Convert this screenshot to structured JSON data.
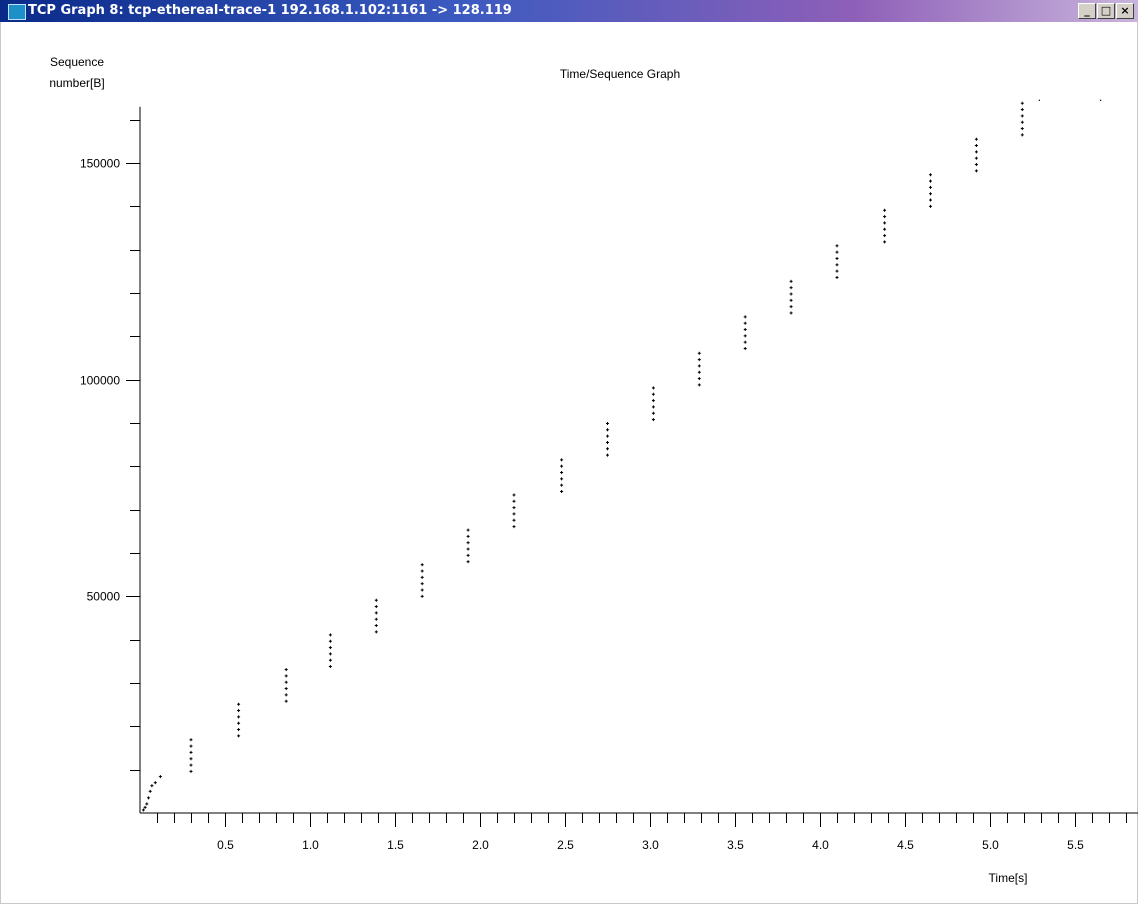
{
  "window": {
    "title": "TCP Graph 8: tcp-ethereal-trace-1 192.168.1.102:1161 -> 128.119",
    "minimize_glyph": "_",
    "maximize_glyph": "□",
    "close_glyph": "×"
  },
  "chart_data": {
    "type": "scatter",
    "title": "Time/Sequence Graph",
    "xlabel": "Time[s]",
    "ylabel_lines": [
      "Sequence",
      "number[B]"
    ],
    "xlim": [
      0,
      5.88
    ],
    "ylim": [
      0,
      163000
    ],
    "x_ticks": [
      0.5,
      1.0,
      1.5,
      2.0,
      2.5,
      3.0,
      3.5,
      4.0,
      4.5,
      5.0,
      5.5
    ],
    "x_tick_labels": [
      "0.5",
      "1.0",
      "1.5",
      "2.0",
      "2.5",
      "3.0",
      "3.5",
      "4.0",
      "4.5",
      "5.0",
      "5.5"
    ],
    "x_minor_step": 0.1,
    "y_ticks": [
      50000,
      100000,
      150000
    ],
    "y_tick_labels": [
      "50000",
      "100000",
      "150000"
    ],
    "y_minor_step": 10000,
    "grid": false,
    "marker_color": "#000000",
    "early_points": [
      {
        "t": 0.02,
        "seq": 700
      },
      {
        "t": 0.03,
        "seq": 1300
      },
      {
        "t": 0.04,
        "seq": 2100
      },
      {
        "t": 0.05,
        "seq": 3500
      },
      {
        "t": 0.06,
        "seq": 5000
      },
      {
        "t": 0.07,
        "seq": 6300
      },
      {
        "t": 0.09,
        "seq": 7000
      },
      {
        "t": 0.12,
        "seq": 8400
      }
    ],
    "bursts": [
      {
        "t": 0.3,
        "seq_start": 9600
      },
      {
        "t": 0.58,
        "seq_start": 17800
      },
      {
        "t": 0.86,
        "seq_start": 25800
      },
      {
        "t": 1.12,
        "seq_start": 33800
      },
      {
        "t": 1.39,
        "seq_start": 41800
      },
      {
        "t": 1.66,
        "seq_start": 50000
      },
      {
        "t": 1.93,
        "seq_start": 58000
      },
      {
        "t": 2.2,
        "seq_start": 66100
      },
      {
        "t": 2.48,
        "seq_start": 74200
      },
      {
        "t": 2.75,
        "seq_start": 82600
      },
      {
        "t": 3.02,
        "seq_start": 90800
      },
      {
        "t": 3.29,
        "seq_start": 98800
      },
      {
        "t": 3.56,
        "seq_start": 107200
      },
      {
        "t": 3.83,
        "seq_start": 115400
      },
      {
        "t": 4.1,
        "seq_start": 123600
      },
      {
        "t": 4.38,
        "seq_start": 131800
      },
      {
        "t": 4.65,
        "seq_start": 140000
      },
      {
        "t": 4.92,
        "seq_start": 148200
      },
      {
        "t": 5.19,
        "seq_start": 156500
      }
    ],
    "burst_segments": 6,
    "segment_bytes": 1460,
    "tail_points": [
      {
        "t": 5.29,
        "seq": 164500
      },
      {
        "t": 5.65,
        "seq": 164500
      }
    ]
  }
}
